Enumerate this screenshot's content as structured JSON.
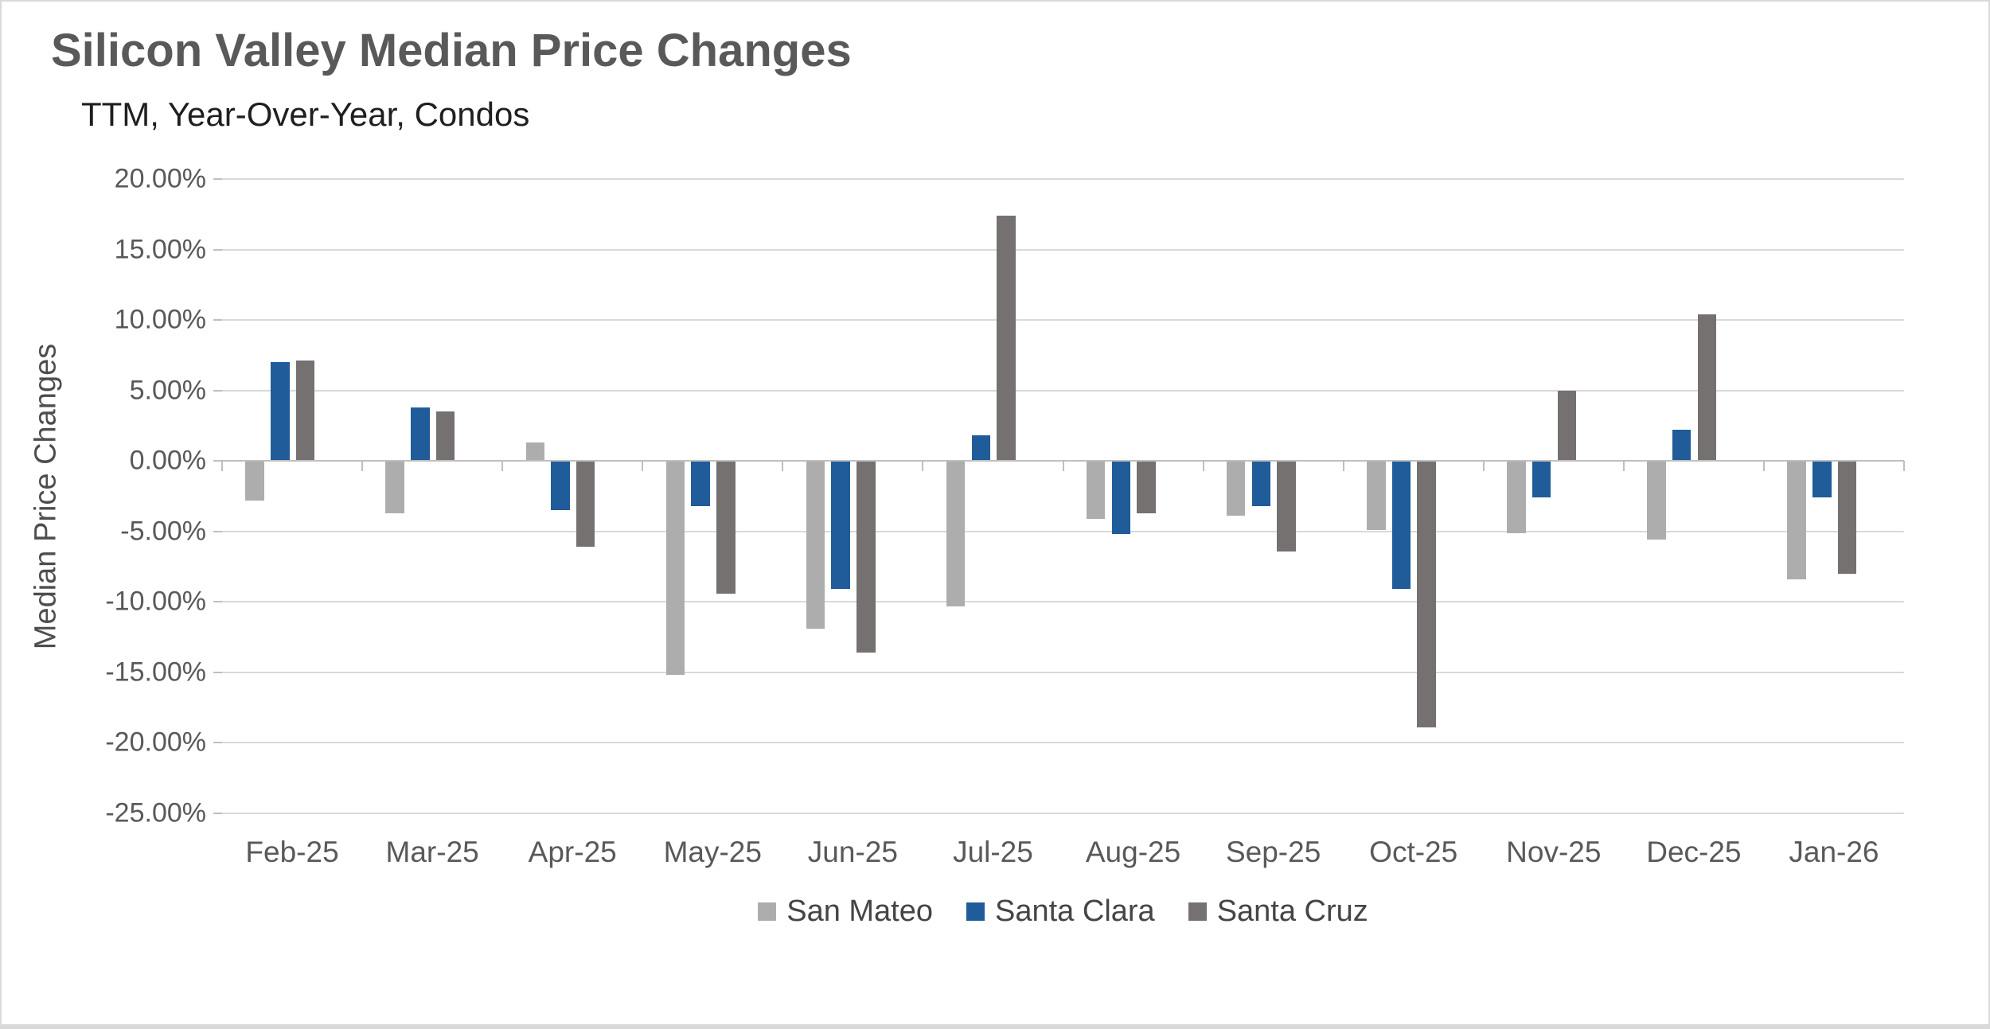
{
  "title": "Silicon Valley Median Price Changes",
  "subtitle": "TTM, Year-Over-Year, Condos",
  "colors": {
    "san_mateo": "#ADADAD",
    "santa_clara": "#1F5C99",
    "santa_cruz": "#757171",
    "gridline": "#D9D9D9",
    "axis_line": "#BFBFBF",
    "title_text": "#595959",
    "tick_text": "#595959"
  },
  "chart_data": {
    "type": "bar",
    "title": "Silicon Valley Median Price Changes",
    "subtitle": "TTM, Year-Over-Year, Condos",
    "xlabel": "",
    "ylabel": "Median Price Changes",
    "categories": [
      "Feb-25",
      "Mar-25",
      "Apr-25",
      "May-25",
      "Jun-25",
      "Jul-25",
      "Aug-25",
      "Sep-25",
      "Oct-25",
      "Nov-25",
      "Dec-25",
      "Jan-26"
    ],
    "series": [
      {
        "name": "San Mateo",
        "color": "#ADADAD",
        "values": [
          -2.8,
          -3.7,
          1.3,
          -15.2,
          -11.9,
          -10.3,
          -4.1,
          -3.9,
          -4.9,
          -5.1,
          -5.6,
          -8.4
        ]
      },
      {
        "name": "Santa Clara",
        "color": "#1F5C99",
        "values": [
          7.0,
          3.8,
          -3.5,
          -3.2,
          -9.1,
          1.8,
          -5.2,
          -3.2,
          -9.1,
          -2.6,
          2.2,
          -2.6
        ]
      },
      {
        "name": "Santa Cruz",
        "color": "#757171",
        "values": [
          7.1,
          3.5,
          -6.1,
          -9.4,
          -13.6,
          17.4,
          -3.7,
          -6.4,
          -18.9,
          5.0,
          10.4,
          -8.0
        ]
      }
    ],
    "ylim": [
      -25,
      20
    ],
    "y_tick_step": 5,
    "y_tick_labels": [
      "20.00%",
      "15.00%",
      "10.00%",
      "5.00%",
      "0.00%",
      "-5.00%",
      "-10.00%",
      "-15.00%",
      "-20.00%",
      "-25.00%"
    ],
    "y_tick_values": [
      20,
      15,
      10,
      5,
      0,
      -5,
      -10,
      -15,
      -20,
      -25
    ],
    "grid": true,
    "legend_position": "bottom"
  }
}
